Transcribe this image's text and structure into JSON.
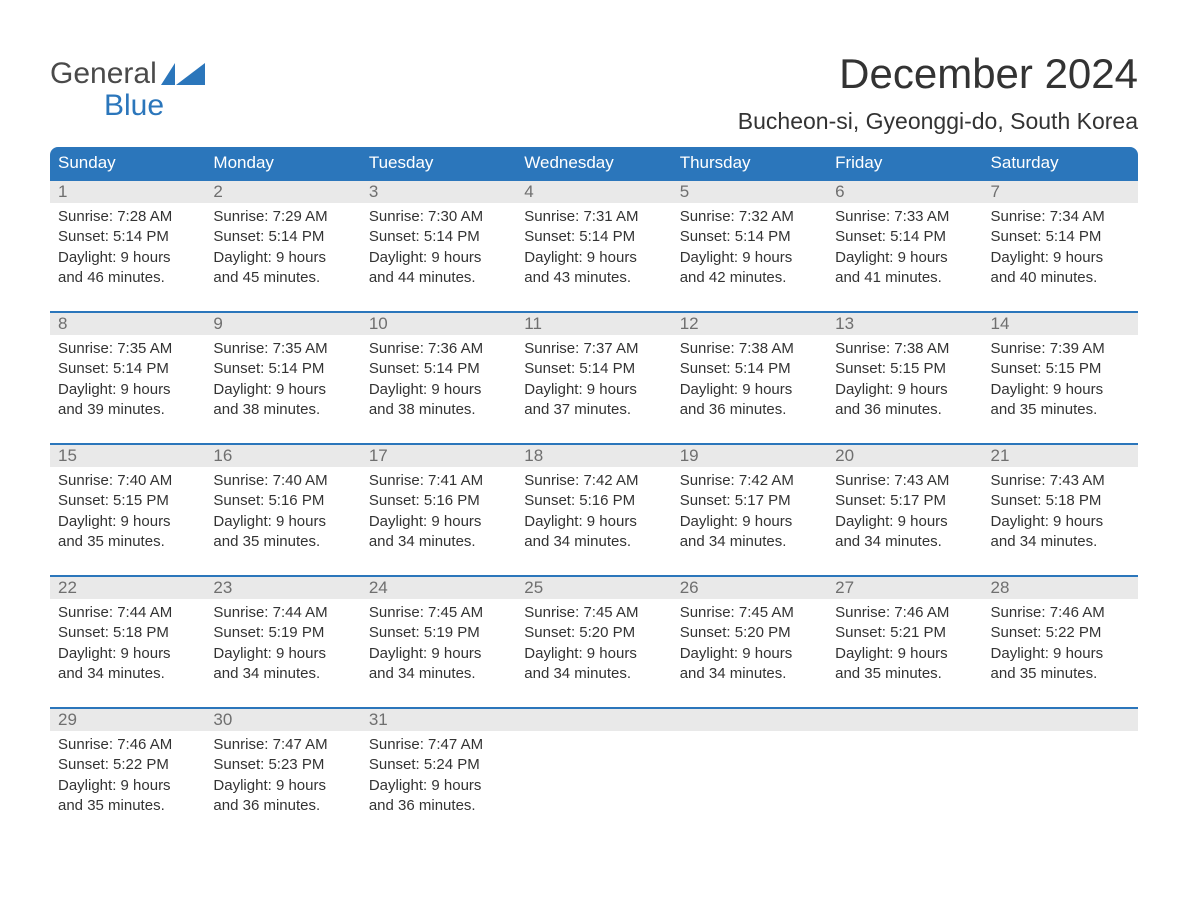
{
  "logo": {
    "text_top": "General",
    "text_bottom": "Blue",
    "gray": "#4a4a4a",
    "blue": "#2b76bb"
  },
  "title": "December 2024",
  "location": "Bucheon-si, Gyeonggi-do, South Korea",
  "colors": {
    "header_bg": "#2b76bb",
    "header_text": "#ffffff",
    "strip_bg": "#e9e9e9",
    "strip_border": "#2b76bb",
    "daynum_text": "#6f6f6f",
    "body_text": "#333333",
    "page_bg": "#ffffff"
  },
  "day_headers": [
    "Sunday",
    "Monday",
    "Tuesday",
    "Wednesday",
    "Thursday",
    "Friday",
    "Saturday"
  ],
  "weeks": [
    [
      {
        "num": "1",
        "sunrise": "Sunrise: 7:28 AM",
        "sunset": "Sunset: 5:14 PM",
        "dl1": "Daylight: 9 hours",
        "dl2": "and 46 minutes."
      },
      {
        "num": "2",
        "sunrise": "Sunrise: 7:29 AM",
        "sunset": "Sunset: 5:14 PM",
        "dl1": "Daylight: 9 hours",
        "dl2": "and 45 minutes."
      },
      {
        "num": "3",
        "sunrise": "Sunrise: 7:30 AM",
        "sunset": "Sunset: 5:14 PM",
        "dl1": "Daylight: 9 hours",
        "dl2": "and 44 minutes."
      },
      {
        "num": "4",
        "sunrise": "Sunrise: 7:31 AM",
        "sunset": "Sunset: 5:14 PM",
        "dl1": "Daylight: 9 hours",
        "dl2": "and 43 minutes."
      },
      {
        "num": "5",
        "sunrise": "Sunrise: 7:32 AM",
        "sunset": "Sunset: 5:14 PM",
        "dl1": "Daylight: 9 hours",
        "dl2": "and 42 minutes."
      },
      {
        "num": "6",
        "sunrise": "Sunrise: 7:33 AM",
        "sunset": "Sunset: 5:14 PM",
        "dl1": "Daylight: 9 hours",
        "dl2": "and 41 minutes."
      },
      {
        "num": "7",
        "sunrise": "Sunrise: 7:34 AM",
        "sunset": "Sunset: 5:14 PM",
        "dl1": "Daylight: 9 hours",
        "dl2": "and 40 minutes."
      }
    ],
    [
      {
        "num": "8",
        "sunrise": "Sunrise: 7:35 AM",
        "sunset": "Sunset: 5:14 PM",
        "dl1": "Daylight: 9 hours",
        "dl2": "and 39 minutes."
      },
      {
        "num": "9",
        "sunrise": "Sunrise: 7:35 AM",
        "sunset": "Sunset: 5:14 PM",
        "dl1": "Daylight: 9 hours",
        "dl2": "and 38 minutes."
      },
      {
        "num": "10",
        "sunrise": "Sunrise: 7:36 AM",
        "sunset": "Sunset: 5:14 PM",
        "dl1": "Daylight: 9 hours",
        "dl2": "and 38 minutes."
      },
      {
        "num": "11",
        "sunrise": "Sunrise: 7:37 AM",
        "sunset": "Sunset: 5:14 PM",
        "dl1": "Daylight: 9 hours",
        "dl2": "and 37 minutes."
      },
      {
        "num": "12",
        "sunrise": "Sunrise: 7:38 AM",
        "sunset": "Sunset: 5:14 PM",
        "dl1": "Daylight: 9 hours",
        "dl2": "and 36 minutes."
      },
      {
        "num": "13",
        "sunrise": "Sunrise: 7:38 AM",
        "sunset": "Sunset: 5:15 PM",
        "dl1": "Daylight: 9 hours",
        "dl2": "and 36 minutes."
      },
      {
        "num": "14",
        "sunrise": "Sunrise: 7:39 AM",
        "sunset": "Sunset: 5:15 PM",
        "dl1": "Daylight: 9 hours",
        "dl2": "and 35 minutes."
      }
    ],
    [
      {
        "num": "15",
        "sunrise": "Sunrise: 7:40 AM",
        "sunset": "Sunset: 5:15 PM",
        "dl1": "Daylight: 9 hours",
        "dl2": "and 35 minutes."
      },
      {
        "num": "16",
        "sunrise": "Sunrise: 7:40 AM",
        "sunset": "Sunset: 5:16 PM",
        "dl1": "Daylight: 9 hours",
        "dl2": "and 35 minutes."
      },
      {
        "num": "17",
        "sunrise": "Sunrise: 7:41 AM",
        "sunset": "Sunset: 5:16 PM",
        "dl1": "Daylight: 9 hours",
        "dl2": "and 34 minutes."
      },
      {
        "num": "18",
        "sunrise": "Sunrise: 7:42 AM",
        "sunset": "Sunset: 5:16 PM",
        "dl1": "Daylight: 9 hours",
        "dl2": "and 34 minutes."
      },
      {
        "num": "19",
        "sunrise": "Sunrise: 7:42 AM",
        "sunset": "Sunset: 5:17 PM",
        "dl1": "Daylight: 9 hours",
        "dl2": "and 34 minutes."
      },
      {
        "num": "20",
        "sunrise": "Sunrise: 7:43 AM",
        "sunset": "Sunset: 5:17 PM",
        "dl1": "Daylight: 9 hours",
        "dl2": "and 34 minutes."
      },
      {
        "num": "21",
        "sunrise": "Sunrise: 7:43 AM",
        "sunset": "Sunset: 5:18 PM",
        "dl1": "Daylight: 9 hours",
        "dl2": "and 34 minutes."
      }
    ],
    [
      {
        "num": "22",
        "sunrise": "Sunrise: 7:44 AM",
        "sunset": "Sunset: 5:18 PM",
        "dl1": "Daylight: 9 hours",
        "dl2": "and 34 minutes."
      },
      {
        "num": "23",
        "sunrise": "Sunrise: 7:44 AM",
        "sunset": "Sunset: 5:19 PM",
        "dl1": "Daylight: 9 hours",
        "dl2": "and 34 minutes."
      },
      {
        "num": "24",
        "sunrise": "Sunrise: 7:45 AM",
        "sunset": "Sunset: 5:19 PM",
        "dl1": "Daylight: 9 hours",
        "dl2": "and 34 minutes."
      },
      {
        "num": "25",
        "sunrise": "Sunrise: 7:45 AM",
        "sunset": "Sunset: 5:20 PM",
        "dl1": "Daylight: 9 hours",
        "dl2": "and 34 minutes."
      },
      {
        "num": "26",
        "sunrise": "Sunrise: 7:45 AM",
        "sunset": "Sunset: 5:20 PM",
        "dl1": "Daylight: 9 hours",
        "dl2": "and 34 minutes."
      },
      {
        "num": "27",
        "sunrise": "Sunrise: 7:46 AM",
        "sunset": "Sunset: 5:21 PM",
        "dl1": "Daylight: 9 hours",
        "dl2": "and 35 minutes."
      },
      {
        "num": "28",
        "sunrise": "Sunrise: 7:46 AM",
        "sunset": "Sunset: 5:22 PM",
        "dl1": "Daylight: 9 hours",
        "dl2": "and 35 minutes."
      }
    ],
    [
      {
        "num": "29",
        "sunrise": "Sunrise: 7:46 AM",
        "sunset": "Sunset: 5:22 PM",
        "dl1": "Daylight: 9 hours",
        "dl2": "and 35 minutes."
      },
      {
        "num": "30",
        "sunrise": "Sunrise: 7:47 AM",
        "sunset": "Sunset: 5:23 PM",
        "dl1": "Daylight: 9 hours",
        "dl2": "and 36 minutes."
      },
      {
        "num": "31",
        "sunrise": "Sunrise: 7:47 AM",
        "sunset": "Sunset: 5:24 PM",
        "dl1": "Daylight: 9 hours",
        "dl2": "and 36 minutes."
      },
      {
        "num": "",
        "sunrise": "",
        "sunset": "",
        "dl1": "",
        "dl2": ""
      },
      {
        "num": "",
        "sunrise": "",
        "sunset": "",
        "dl1": "",
        "dl2": ""
      },
      {
        "num": "",
        "sunrise": "",
        "sunset": "",
        "dl1": "",
        "dl2": ""
      },
      {
        "num": "",
        "sunrise": "",
        "sunset": "",
        "dl1": "",
        "dl2": ""
      }
    ]
  ]
}
